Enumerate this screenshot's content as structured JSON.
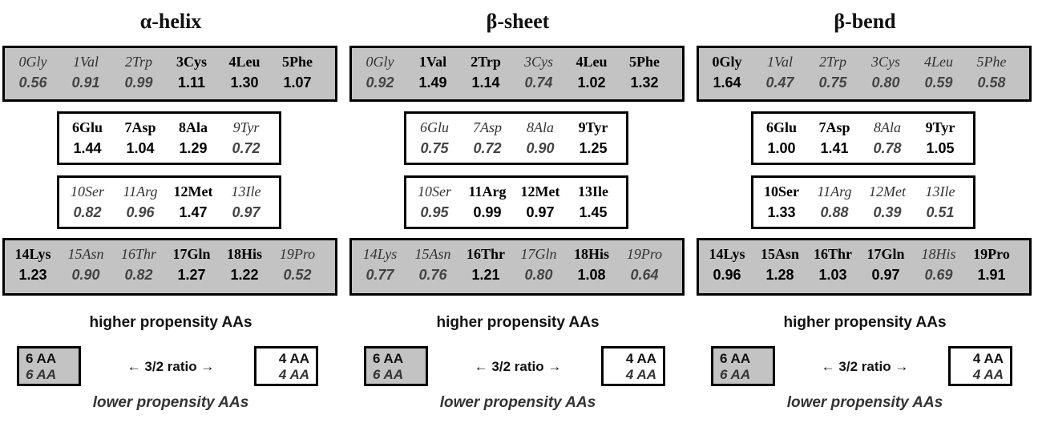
{
  "panels": [
    {
      "title": "α-helix",
      "rows": [
        [
          {
            "name": "0Gly",
            "value": "0.56",
            "high": false
          },
          {
            "name": "1Val",
            "value": "0.91",
            "high": false
          },
          {
            "name": "2Trp",
            "value": "0.99",
            "high": false
          },
          {
            "name": "3Cys",
            "value": "1.11",
            "high": true
          },
          {
            "name": "4Leu",
            "value": "1.30",
            "high": true
          },
          {
            "name": "5Phe",
            "value": "1.07",
            "high": true
          }
        ],
        [
          {
            "name": "6Glu",
            "value": "1.44",
            "high": true
          },
          {
            "name": "7Asp",
            "value": "1.04",
            "high": true
          },
          {
            "name": "8Ala",
            "value": "1.29",
            "high": true
          },
          {
            "name": "9Tyr",
            "value": "0.72",
            "high": false
          }
        ],
        [
          {
            "name": "10Ser",
            "value": "0.82",
            "high": false
          },
          {
            "name": "11Arg",
            "value": "0.96",
            "high": false
          },
          {
            "name": "12Met",
            "value": "1.47",
            "high": true
          },
          {
            "name": "13Ile",
            "value": "0.97",
            "high": false
          }
        ],
        [
          {
            "name": "14Lys",
            "value": "1.23",
            "high": true
          },
          {
            "name": "15Asn",
            "value": "0.90",
            "high": false
          },
          {
            "name": "16Thr",
            "value": "0.82",
            "high": false
          },
          {
            "name": "17Gln",
            "value": "1.27",
            "high": true
          },
          {
            "name": "18His",
            "value": "1.22",
            "high": true
          },
          {
            "name": "19Pro",
            "value": "0.52",
            "high": false
          }
        ]
      ]
    },
    {
      "title": "β-sheet",
      "rows": [
        [
          {
            "name": "0Gly",
            "value": "0.92",
            "high": false
          },
          {
            "name": "1Val",
            "value": "1.49",
            "high": true
          },
          {
            "name": "2Trp",
            "value": "1.14",
            "high": true
          },
          {
            "name": "3Cys",
            "value": "0.74",
            "high": false
          },
          {
            "name": "4Leu",
            "value": "1.02",
            "high": true
          },
          {
            "name": "5Phe",
            "value": "1.32",
            "high": true
          }
        ],
        [
          {
            "name": "6Glu",
            "value": "0.75",
            "high": false
          },
          {
            "name": "7Asp",
            "value": "0.72",
            "high": false
          },
          {
            "name": "8Ala",
            "value": "0.90",
            "high": false
          },
          {
            "name": "9Tyr",
            "value": "1.25",
            "high": true
          }
        ],
        [
          {
            "name": "10Ser",
            "value": "0.95",
            "high": false
          },
          {
            "name": "11Arg",
            "value": "0.99",
            "high": true
          },
          {
            "name": "12Met",
            "value": "0.97",
            "high": true
          },
          {
            "name": "13Ile",
            "value": "1.45",
            "high": true
          }
        ],
        [
          {
            "name": "14Lys",
            "value": "0.77",
            "high": false
          },
          {
            "name": "15Asn",
            "value": "0.76",
            "high": false
          },
          {
            "name": "16Thr",
            "value": "1.21",
            "high": true
          },
          {
            "name": "17Gln",
            "value": "0.80",
            "high": false
          },
          {
            "name": "18His",
            "value": "1.08",
            "high": true
          },
          {
            "name": "19Pro",
            "value": "0.64",
            "high": false
          }
        ]
      ]
    },
    {
      "title": "β-bend",
      "rows": [
        [
          {
            "name": "0Gly",
            "value": "1.64",
            "high": true
          },
          {
            "name": "1Val",
            "value": "0.47",
            "high": false
          },
          {
            "name": "2Trp",
            "value": "0.75",
            "high": false
          },
          {
            "name": "3Cys",
            "value": "0.80",
            "high": false
          },
          {
            "name": "4Leu",
            "value": "0.59",
            "high": false
          },
          {
            "name": "5Phe",
            "value": "0.58",
            "high": false
          }
        ],
        [
          {
            "name": "6Glu",
            "value": "1.00",
            "high": true
          },
          {
            "name": "7Asp",
            "value": "1.41",
            "high": true
          },
          {
            "name": "8Ala",
            "value": "0.78",
            "high": false
          },
          {
            "name": "9Tyr",
            "value": "1.05",
            "high": true
          }
        ],
        [
          {
            "name": "10Ser",
            "value": "1.33",
            "high": true
          },
          {
            "name": "11Arg",
            "value": "0.88",
            "high": false
          },
          {
            "name": "12Met",
            "value": "0.39",
            "high": false
          },
          {
            "name": "13Ile",
            "value": "0.51",
            "high": false
          }
        ],
        [
          {
            "name": "14Lys",
            "value": "0.96",
            "high": true
          },
          {
            "name": "15Asn",
            "value": "1.28",
            "high": true
          },
          {
            "name": "16Thr",
            "value": "1.03",
            "high": true
          },
          {
            "name": "17Gln",
            "value": "0.97",
            "high": true
          },
          {
            "name": "18His",
            "value": "0.69",
            "high": false
          },
          {
            "name": "19Pro",
            "value": "1.91",
            "high": true
          }
        ]
      ]
    }
  ],
  "legend": {
    "higher_label": "higher propensity AAs",
    "lower_label": "lower propensity AAs",
    "left_box_line1": "6 AA",
    "left_box_line2": "6 AA",
    "ratio_text": "← 3/2 ratio →",
    "right_box_line1": "4 AA",
    "right_box_line2": "4 AA"
  },
  "colors": {
    "gray_fill": "#c3c3c3",
    "white_fill": "#ffffff",
    "border": "#000000"
  }
}
